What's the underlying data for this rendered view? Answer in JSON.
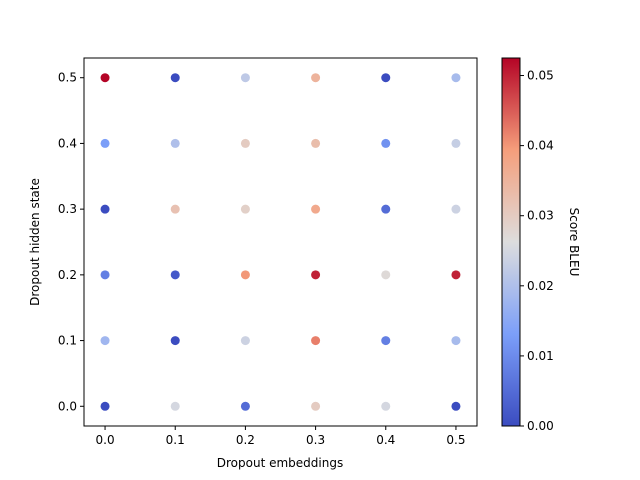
{
  "chart_data": {
    "type": "scatter",
    "title": "",
    "xlabel": "Dropout embeddings",
    "ylabel": "Dropout hidden state",
    "colorbar_label": "Score BLEU",
    "colormap": "coolwarm",
    "xlim": [
      -0.03,
      0.53
    ],
    "ylim": [
      -0.03,
      0.53
    ],
    "xticks": [
      0.0,
      0.1,
      0.2,
      0.3,
      0.4,
      0.5
    ],
    "yticks": [
      0.0,
      0.1,
      0.2,
      0.3,
      0.4,
      0.5
    ],
    "xtick_labels": [
      "0.0",
      "0.1",
      "0.2",
      "0.3",
      "0.4",
      "0.5"
    ],
    "ytick_labels": [
      "0.0",
      "0.1",
      "0.2",
      "0.3",
      "0.4",
      "0.5"
    ],
    "colorbar_range": [
      0.0,
      0.0525
    ],
    "colorbar_ticks": [
      0.0,
      0.01,
      0.02,
      0.03,
      0.04,
      0.05
    ],
    "colorbar_tick_labels": [
      "0.00",
      "0.01",
      "0.02",
      "0.03",
      "0.04",
      "0.05"
    ],
    "points": [
      {
        "x": 0.0,
        "y": 0.5,
        "score": 0.0525
      },
      {
        "x": 0.1,
        "y": 0.5,
        "score": 0.0
      },
      {
        "x": 0.2,
        "y": 0.5,
        "score": 0.022
      },
      {
        "x": 0.3,
        "y": 0.5,
        "score": 0.035
      },
      {
        "x": 0.4,
        "y": 0.5,
        "score": 0.0
      },
      {
        "x": 0.5,
        "y": 0.5,
        "score": 0.019
      },
      {
        "x": 0.0,
        "y": 0.4,
        "score": 0.013
      },
      {
        "x": 0.1,
        "y": 0.4,
        "score": 0.02
      },
      {
        "x": 0.2,
        "y": 0.4,
        "score": 0.03
      },
      {
        "x": 0.3,
        "y": 0.4,
        "score": 0.033
      },
      {
        "x": 0.4,
        "y": 0.4,
        "score": 0.011
      },
      {
        "x": 0.5,
        "y": 0.4,
        "score": 0.023
      },
      {
        "x": 0.0,
        "y": 0.3,
        "score": 0.0
      },
      {
        "x": 0.1,
        "y": 0.3,
        "score": 0.032
      },
      {
        "x": 0.2,
        "y": 0.3,
        "score": 0.029
      },
      {
        "x": 0.3,
        "y": 0.3,
        "score": 0.037
      },
      {
        "x": 0.4,
        "y": 0.3,
        "score": 0.005
      },
      {
        "x": 0.5,
        "y": 0.3,
        "score": 0.024
      },
      {
        "x": 0.0,
        "y": 0.2,
        "score": 0.008
      },
      {
        "x": 0.1,
        "y": 0.2,
        "score": 0.002
      },
      {
        "x": 0.2,
        "y": 0.2,
        "score": 0.04
      },
      {
        "x": 0.3,
        "y": 0.2,
        "score": 0.05
      },
      {
        "x": 0.4,
        "y": 0.2,
        "score": 0.027
      },
      {
        "x": 0.5,
        "y": 0.2,
        "score": 0.05
      },
      {
        "x": 0.0,
        "y": 0.1,
        "score": 0.018
      },
      {
        "x": 0.1,
        "y": 0.1,
        "score": 0.0
      },
      {
        "x": 0.2,
        "y": 0.1,
        "score": 0.024
      },
      {
        "x": 0.3,
        "y": 0.1,
        "score": 0.042
      },
      {
        "x": 0.4,
        "y": 0.1,
        "score": 0.008
      },
      {
        "x": 0.5,
        "y": 0.1,
        "score": 0.019
      },
      {
        "x": 0.0,
        "y": 0.0,
        "score": 0.0
      },
      {
        "x": 0.1,
        "y": 0.0,
        "score": 0.025
      },
      {
        "x": 0.2,
        "y": 0.0,
        "score": 0.005
      },
      {
        "x": 0.3,
        "y": 0.0,
        "score": 0.03
      },
      {
        "x": 0.4,
        "y": 0.0,
        "score": 0.025
      },
      {
        "x": 0.5,
        "y": 0.0,
        "score": 0.0
      }
    ]
  }
}
